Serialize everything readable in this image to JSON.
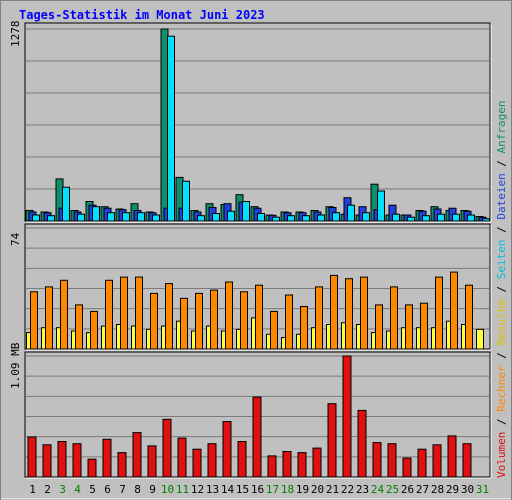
{
  "title": "Tages-Statistik im Monat Juni 2023",
  "colors": {
    "background": "#c0c0c0",
    "title": "#0000ff",
    "weekend_label": "#008000",
    "weekday_label": "#000000",
    "anfragen": "#108f70",
    "dateien": "#2040e0",
    "seiten": "#00e0ff",
    "besuche": "#ffff40",
    "rechner": "#ff8800",
    "volumen": "#e01010"
  },
  "legend_right": {
    "parts": [
      {
        "text": "Volumen",
        "color": "#e01010"
      },
      {
        "text": " / ",
        "color": "#000000"
      },
      {
        "text": "Rechner",
        "color": "#ff8800"
      },
      {
        "text": " / ",
        "color": "#000000"
      },
      {
        "text": "Besuche",
        "color": "#e0c000"
      },
      {
        "text": " / ",
        "color": "#000000"
      },
      {
        "text": "Seiten",
        "color": "#00c0e0"
      },
      {
        "text": " / ",
        "color": "#000000"
      },
      {
        "text": "Dateien",
        "color": "#2040e0"
      },
      {
        "text": " / ",
        "color": "#000000"
      },
      {
        "text": "Anfragen",
        "color": "#108f70"
      }
    ]
  },
  "chart_data": [
    {
      "type": "bar",
      "name": "hits-files-pages",
      "ymax_label": "1278",
      "ylim": [
        0,
        1278
      ],
      "grid": true,
      "x": [
        1,
        2,
        3,
        4,
        5,
        6,
        7,
        8,
        9,
        10,
        11,
        12,
        13,
        14,
        15,
        16,
        17,
        18,
        19,
        20,
        21,
        22,
        23,
        24,
        25,
        26,
        27,
        28,
        29,
        30,
        31
      ],
      "weekend_days": [
        3,
        4,
        10,
        11,
        17,
        18,
        24,
        25,
        31
      ],
      "series": [
        {
          "name": "Anfragen",
          "values": [
            70,
            60,
            280,
            70,
            130,
            95,
            80,
            115,
            60,
            1278,
            290,
            70,
            115,
            110,
            175,
            95,
            40,
            60,
            60,
            70,
            95,
            45,
            40,
            245,
            40,
            40,
            70,
            95,
            70,
            70,
            30
          ]
        },
        {
          "name": "Dateien",
          "values": [
            60,
            55,
            85,
            60,
            105,
            85,
            75,
            70,
            55,
            85,
            85,
            60,
            90,
            115,
            125,
            85,
            38,
            55,
            55,
            60,
            90,
            155,
            95,
            75,
            105,
            40,
            65,
            80,
            85,
            65,
            25
          ]
        },
        {
          "name": "Seiten",
          "values": [
            40,
            35,
            225,
            45,
            95,
            55,
            55,
            55,
            40,
            1230,
            265,
            35,
            50,
            65,
            130,
            50,
            25,
            35,
            35,
            40,
            55,
            105,
            55,
            200,
            45,
            25,
            35,
            45,
            45,
            40,
            15
          ]
        }
      ]
    },
    {
      "type": "bar",
      "name": "visits-hosts",
      "ymax_label": "74",
      "ylim": [
        0,
        74
      ],
      "grid": true,
      "x": [
        1,
        2,
        3,
        4,
        5,
        6,
        7,
        8,
        9,
        10,
        11,
        12,
        13,
        14,
        15,
        16,
        17,
        18,
        19,
        20,
        21,
        22,
        23,
        24,
        25,
        26,
        27,
        28,
        29,
        30,
        31
      ],
      "series": [
        {
          "name": "Besuche",
          "values": [
            10,
            13,
            13,
            11,
            10,
            14,
            15,
            14,
            12,
            14,
            17,
            11,
            14,
            11,
            12,
            19,
            9,
            7,
            9,
            13,
            15,
            16,
            15,
            10,
            11,
            13,
            13,
            13,
            17,
            15,
            12
          ]
        },
        {
          "name": "Rechner",
          "values": [
            35,
            38,
            42,
            27,
            23,
            42,
            44,
            44,
            34,
            40,
            31,
            34,
            36,
            41,
            35,
            39,
            23,
            33,
            26,
            38,
            45,
            43,
            44,
            27,
            38,
            27,
            28,
            44,
            47,
            39,
            0
          ]
        }
      ]
    },
    {
      "type": "bar",
      "name": "volume",
      "ymax_label": "1.09 MB",
      "ylim": [
        0,
        1.09
      ],
      "grid": true,
      "x": [
        1,
        2,
        3,
        4,
        5,
        6,
        7,
        8,
        9,
        10,
        11,
        12,
        13,
        14,
        15,
        16,
        17,
        18,
        19,
        20,
        21,
        22,
        23,
        24,
        25,
        26,
        27,
        28,
        29,
        30,
        31
      ],
      "series": [
        {
          "name": "Volumen",
          "values": [
            0.36,
            0.29,
            0.32,
            0.3,
            0.16,
            0.34,
            0.22,
            0.4,
            0.28,
            0.52,
            0.35,
            0.25,
            0.3,
            0.5,
            0.32,
            0.72,
            0.19,
            0.23,
            0.22,
            0.26,
            0.66,
            1.09,
            0.6,
            0.31,
            0.3,
            0.17,
            0.25,
            0.29,
            0.37,
            0.3,
            0
          ]
        }
      ]
    }
  ]
}
